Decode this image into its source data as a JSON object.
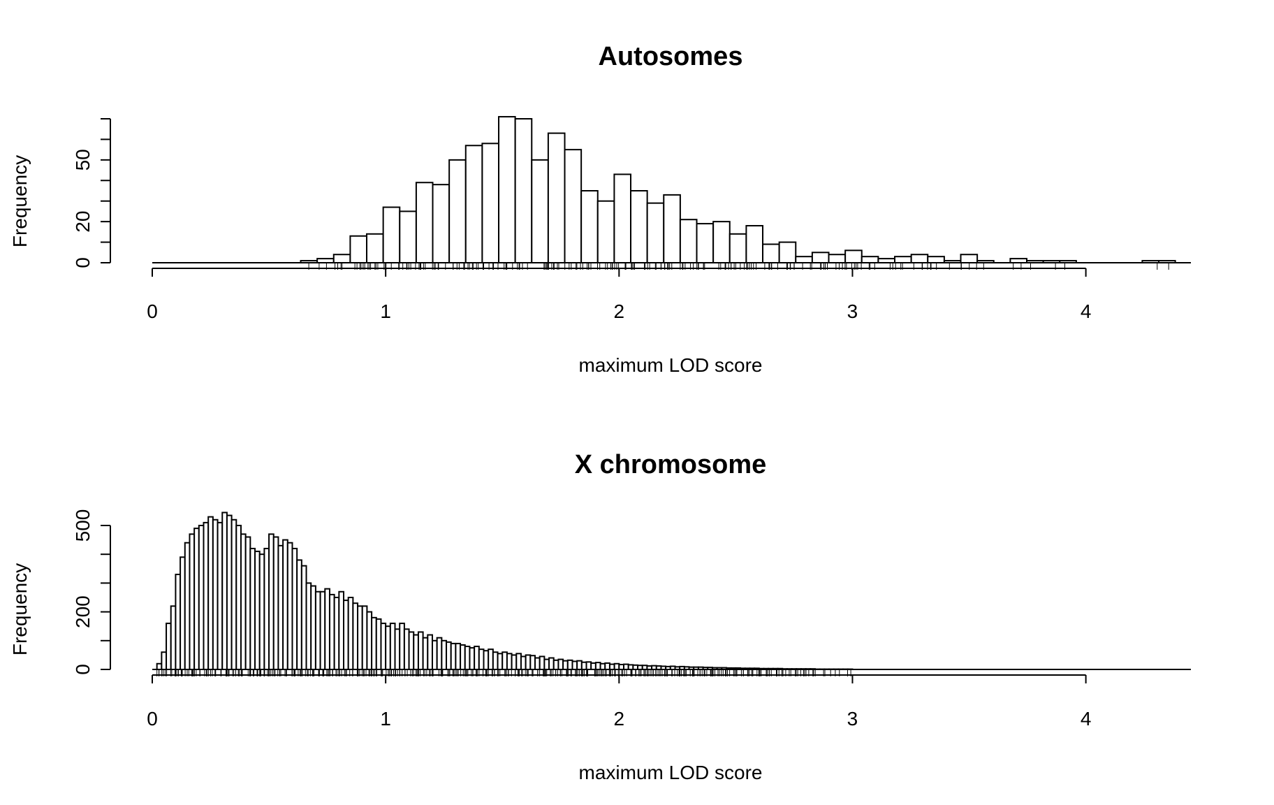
{
  "chart_data": [
    {
      "type": "bar",
      "title": "Autosomes",
      "xlabel": "maximum LOD score",
      "ylabel": "Frequency",
      "xlim": [
        0,
        4.45
      ],
      "x_ticks": [
        0,
        1,
        2,
        3,
        4
      ],
      "y_ticks": [
        0,
        10,
        20,
        30,
        40,
        50,
        60,
        70
      ],
      "y_tick_labels": [
        "0",
        "",
        "20",
        "",
        "",
        "50",
        "",
        ""
      ],
      "ylim": [
        0,
        70
      ],
      "bin_width": 0.0707,
      "bin_start": 0.636,
      "values": [
        1,
        2,
        4,
        13,
        14,
        27,
        25,
        39,
        38,
        50,
        57,
        58,
        71,
        70,
        50,
        63,
        55,
        35,
        30,
        43,
        35,
        29,
        33,
        21,
        19,
        20,
        14,
        18,
        9,
        10,
        3,
        5,
        4,
        6,
        3,
        2,
        3,
        4,
        3,
        1,
        4,
        1,
        0,
        2,
        1,
        1,
        1,
        0,
        0,
        0,
        0,
        1,
        1,
        0,
        1
      ],
      "rug": "one tick per observed maximum LOD score, drawn below the x-axis line",
      "grid": false,
      "legend": "none"
    },
    {
      "type": "bar",
      "title": "X chromosome",
      "xlabel": "maximum LOD score",
      "ylabel": "Frequency",
      "xlim": [
        0,
        4.45
      ],
      "x_ticks": [
        0,
        1,
        2,
        3,
        4
      ],
      "y_ticks": [
        0,
        100,
        200,
        300,
        400,
        500
      ],
      "y_tick_labels": [
        "0",
        "",
        "200",
        "",
        "",
        "500"
      ],
      "ylim": [
        0,
        500
      ],
      "bin_width": 0.02,
      "bin_start": 0.0,
      "values_description": "right-skewed distribution peaking near 0.2 to 0.3 at about 540, a secondary shoulder near 0.45 at about 470, decaying to near 0 by 3",
      "values": [
        0,
        20,
        60,
        160,
        220,
        330,
        390,
        440,
        470,
        490,
        500,
        510,
        530,
        520,
        510,
        545,
        535,
        520,
        500,
        470,
        460,
        420,
        410,
        400,
        420,
        470,
        460,
        430,
        450,
        440,
        420,
        380,
        360,
        300,
        290,
        270,
        270,
        280,
        260,
        250,
        270,
        240,
        250,
        230,
        220,
        220,
        200,
        180,
        175,
        160,
        150,
        160,
        140,
        160,
        140,
        130,
        120,
        130,
        110,
        120,
        100,
        110,
        100,
        95,
        90,
        90,
        85,
        80,
        75,
        80,
        70,
        65,
        70,
        60,
        55,
        60,
        55,
        50,
        55,
        45,
        50,
        48,
        40,
        45,
        35,
        40,
        32,
        35,
        30,
        32,
        28,
        30,
        25,
        26,
        22,
        24,
        20,
        22,
        18,
        20,
        17,
        18,
        16,
        15,
        14,
        14,
        12,
        13,
        12,
        11,
        10,
        11,
        9,
        10,
        9,
        8,
        8,
        8,
        7,
        7,
        6,
        6,
        6,
        5,
        5,
        5,
        4,
        4,
        4,
        4,
        3,
        3,
        3,
        3,
        3,
        2,
        2,
        2,
        2,
        2,
        2,
        2,
        1,
        1,
        1,
        1,
        1,
        1,
        1,
        1
      ],
      "grid": false,
      "legend": "none"
    }
  ]
}
